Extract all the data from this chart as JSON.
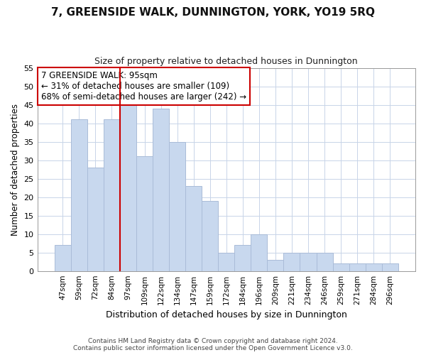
{
  "title": "7, GREENSIDE WALK, DUNNINGTON, YORK, YO19 5RQ",
  "subtitle": "Size of property relative to detached houses in Dunnington",
  "xlabel": "Distribution of detached houses by size in Dunnington",
  "ylabel": "Number of detached properties",
  "categories": [
    "47sqm",
    "59sqm",
    "72sqm",
    "84sqm",
    "97sqm",
    "109sqm",
    "122sqm",
    "134sqm",
    "147sqm",
    "159sqm",
    "172sqm",
    "184sqm",
    "196sqm",
    "209sqm",
    "221sqm",
    "234sqm",
    "246sqm",
    "259sqm",
    "271sqm",
    "284sqm",
    "296sqm"
  ],
  "values": [
    7,
    41,
    28,
    41,
    45,
    31,
    44,
    35,
    23,
    19,
    5,
    7,
    10,
    3,
    5,
    5,
    5,
    2,
    2,
    2,
    2
  ],
  "bar_color": "#c8d8ee",
  "bar_edgecolor": "#aabcd8",
  "grid_color": "#c8d4e8",
  "vline_color": "#cc0000",
  "annotation_text": "7 GREENSIDE WALK: 95sqm\n← 31% of detached houses are smaller (109)\n68% of semi-detached houses are larger (242) →",
  "annotation_box_edgecolor": "#cc0000",
  "ylim": [
    0,
    55
  ],
  "yticks": [
    0,
    5,
    10,
    15,
    20,
    25,
    30,
    35,
    40,
    45,
    50,
    55
  ],
  "footer_line1": "Contains HM Land Registry data © Crown copyright and database right 2024.",
  "footer_line2": "Contains public sector information licensed under the Open Government Licence v3.0.",
  "bg_color": "#ffffff",
  "title_fontsize": 11,
  "subtitle_fontsize": 9
}
